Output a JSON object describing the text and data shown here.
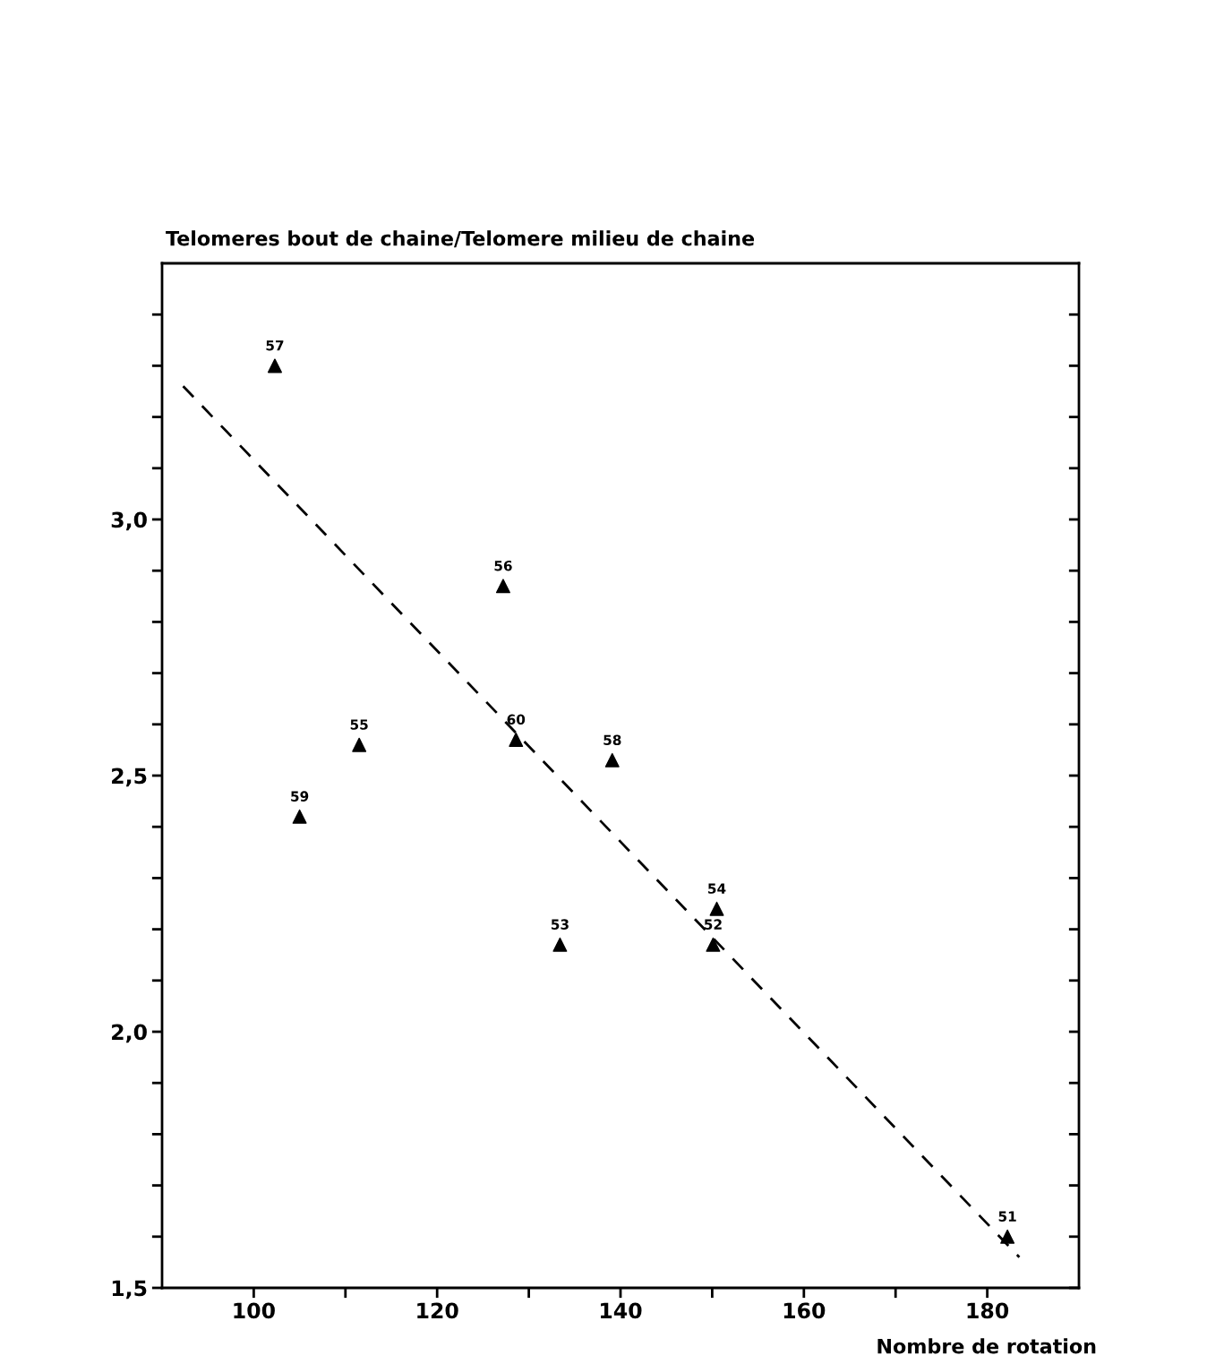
{
  "chart_data": {
    "type": "scatter",
    "ylabel": "Telomeres bout de chaine/Telomere milieu de chaine",
    "xlabel": "Nombre de rotation",
    "xlim": [
      90,
      190
    ],
    "ylim": [
      1.5,
      3.5
    ],
    "xticks": [
      {
        "value": 100,
        "label": "100"
      },
      {
        "value": 110,
        "label": null
      },
      {
        "value": 120,
        "label": "120"
      },
      {
        "value": 130,
        "label": null
      },
      {
        "value": 140,
        "label": "140"
      },
      {
        "value": 150,
        "label": null
      },
      {
        "value": 160,
        "label": "160"
      },
      {
        "value": 170,
        "label": null
      },
      {
        "value": 180,
        "label": "180"
      }
    ],
    "yticks": [
      {
        "value": 1.5,
        "label": "1,5"
      },
      {
        "value": 1.6,
        "label": null
      },
      {
        "value": 1.7,
        "label": null
      },
      {
        "value": 1.8,
        "label": null
      },
      {
        "value": 1.9,
        "label": null
      },
      {
        "value": 2.0,
        "label": "2,0"
      },
      {
        "value": 2.1,
        "label": null
      },
      {
        "value": 2.2,
        "label": null
      },
      {
        "value": 2.3,
        "label": null
      },
      {
        "value": 2.4,
        "label": null
      },
      {
        "value": 2.5,
        "label": "2,5"
      },
      {
        "value": 2.6,
        "label": null
      },
      {
        "value": 2.7,
        "label": null
      },
      {
        "value": 2.8,
        "label": null
      },
      {
        "value": 2.9,
        "label": null
      },
      {
        "value": 3.0,
        "label": "3,0"
      },
      {
        "value": 3.1,
        "label": null
      },
      {
        "value": 3.2,
        "label": null
      },
      {
        "value": 3.3,
        "label": null
      },
      {
        "value": 3.4,
        "label": null
      }
    ],
    "grid": false,
    "legend": false,
    "series": [
      {
        "color": "#000000",
        "marker": "triangle",
        "x": [
          102.3,
          105.0,
          111.5,
          127.2,
          128.6,
          133.4,
          139.1,
          150.5,
          150.1,
          182.2
        ],
        "values": [
          3.3,
          2.42,
          2.56,
          2.87,
          2.57,
          2.17,
          2.53,
          2.24,
          2.17,
          1.6
        ]
      },
      {
        "type": "line",
        "color": "#000000",
        "marker": "none",
        "line_style": "dashed",
        "x": [
          92.3,
          183.5
        ],
        "values": [
          3.26,
          1.56
        ]
      }
    ],
    "annotations": [
      {
        "text": "57",
        "x": 102.3,
        "y": 3.3
      },
      {
        "text": "59",
        "x": 105.0,
        "y": 2.42
      },
      {
        "text": "55",
        "x": 111.5,
        "y": 2.56
      },
      {
        "text": "56",
        "x": 127.2,
        "y": 2.87
      },
      {
        "text": "60",
        "x": 128.6,
        "y": 2.57
      },
      {
        "text": "53",
        "x": 133.4,
        "y": 2.17
      },
      {
        "text": "58",
        "x": 139.1,
        "y": 2.53
      },
      {
        "text": "54",
        "x": 150.5,
        "y": 2.24
      },
      {
        "text": "52",
        "x": 150.1,
        "y": 2.17
      },
      {
        "text": "51",
        "x": 182.2,
        "y": 1.6
      }
    ]
  }
}
